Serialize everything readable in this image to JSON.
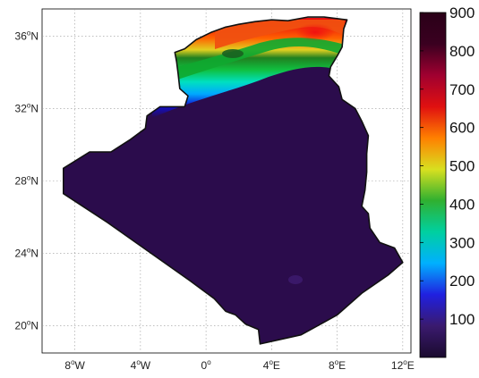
{
  "map": {
    "region": "Algeria",
    "lon_range": [
      -10,
      12.5
    ],
    "lat_range": [
      18.5,
      37.5
    ],
    "grid": true,
    "lat_ticks": [
      {
        "value": 36,
        "deg": "36",
        "sup": "o",
        "hemi": "N"
      },
      {
        "value": 32,
        "deg": "32",
        "sup": "o",
        "hemi": "N"
      },
      {
        "value": 28,
        "deg": "28",
        "sup": "o",
        "hemi": "N"
      },
      {
        "value": 24,
        "deg": "24",
        "sup": "o",
        "hemi": "N"
      },
      {
        "value": 20,
        "deg": "20",
        "sup": "o",
        "hemi": "N"
      }
    ],
    "lon_ticks": [
      {
        "value": -8,
        "deg": "8",
        "sup": "o",
        "hemi": "W"
      },
      {
        "value": -4,
        "deg": "4",
        "sup": "o",
        "hemi": "W"
      },
      {
        "value": 0,
        "deg": "0",
        "sup": "o",
        "hemi": ""
      },
      {
        "value": 4,
        "deg": "4",
        "sup": "o",
        "hemi": "E"
      },
      {
        "value": 8,
        "deg": "8",
        "sup": "o",
        "hemi": "E"
      },
      {
        "value": 12,
        "deg": "12",
        "sup": "o",
        "hemi": "E"
      }
    ]
  },
  "colorbar": {
    "range": [
      0,
      900
    ],
    "ticks": [
      "100",
      "200",
      "300",
      "400",
      "500",
      "600",
      "700",
      "800",
      "900"
    ],
    "colors": [
      "#1a0a2e",
      "#3a1a6e",
      "#2020e0",
      "#00b0ff",
      "#00d0a0",
      "#30b030",
      "#d8e020",
      "#ff8000",
      "#e01010",
      "#a00030",
      "#3a0020",
      "#2a0018"
    ]
  }
}
